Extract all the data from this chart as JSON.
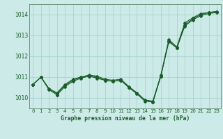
{
  "title": "Graphe pression niveau de la mer (hPa)",
  "bg_color": "#cceae7",
  "grid_color": "#aad4d0",
  "line_color": "#1a5c2a",
  "spine_color": "#5a8a6a",
  "xlim": [
    -0.5,
    23.5
  ],
  "ylim": [
    1009.5,
    1014.5
  ],
  "yticks": [
    1010,
    1011,
    1012,
    1013,
    1014
  ],
  "xticks": [
    0,
    1,
    2,
    3,
    4,
    5,
    6,
    7,
    8,
    9,
    10,
    11,
    12,
    13,
    14,
    15,
    16,
    17,
    18,
    19,
    20,
    21,
    22,
    23
  ],
  "series": [
    [
      1010.65,
      1011.0,
      1010.4,
      1010.15,
      1010.55,
      1010.8,
      1010.95,
      1011.05,
      1010.95,
      1010.85,
      1010.8,
      1010.85,
      1010.5,
      1010.25,
      1009.9,
      1009.85,
      1011.1,
      1012.8,
      1012.45,
      1013.6,
      1013.85,
      1014.05,
      1014.1,
      1014.15
    ],
    [
      1010.65,
      1011.0,
      1010.45,
      1010.2,
      1010.6,
      1010.85,
      1011.0,
      1011.05,
      1011.0,
      1010.85,
      1010.8,
      1010.85,
      1010.5,
      1010.2,
      1009.85,
      1009.8,
      1011.05,
      1012.75,
      1012.4,
      1013.5,
      1013.8,
      1014.0,
      1014.1,
      1014.15
    ],
    [
      1010.65,
      1011.0,
      1010.45,
      1010.25,
      1010.65,
      1010.9,
      1011.0,
      1011.1,
      1011.05,
      1010.9,
      1010.85,
      1010.9,
      1010.55,
      1010.25,
      1009.9,
      1009.8,
      1011.05,
      1012.7,
      1012.4,
      1013.45,
      1013.75,
      1013.95,
      1014.05,
      1014.1
    ]
  ]
}
